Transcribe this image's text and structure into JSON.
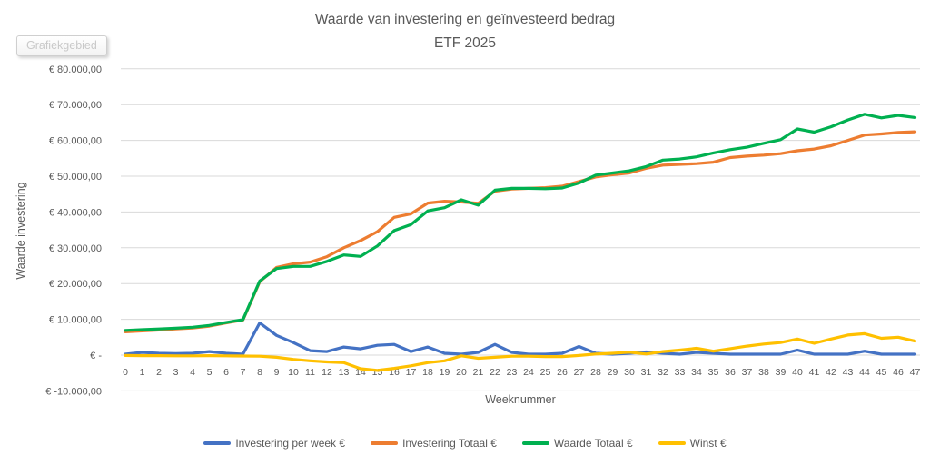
{
  "window": {
    "tooltip_label": "Grafiekgebied"
  },
  "title": {
    "line1": "Waarde van investering en geïnvesteerd bedrag",
    "line2": "ETF 2025"
  },
  "axes": {
    "y_title": "Waarde investering",
    "x_title": "Weeknummer"
  },
  "colors": {
    "grid": "#d9d9d9",
    "text": "#595959",
    "series_blue": "#4472C4",
    "series_orange": "#ED7D31",
    "series_green": "#00B050",
    "series_yellow": "#FFC000"
  },
  "chart_data": {
    "type": "line",
    "title": "Waarde van investering en geïnvesteerd bedrag ETF 2025",
    "xlabel": "Weeknummer",
    "ylabel": "Waarde investering",
    "ylim": [
      -10000,
      80000
    ],
    "grid": true,
    "legend_position": "bottom",
    "x": [
      0,
      1,
      2,
      3,
      4,
      5,
      6,
      7,
      8,
      9,
      10,
      11,
      12,
      13,
      14,
      15,
      16,
      17,
      18,
      19,
      20,
      21,
      22,
      23,
      24,
      25,
      26,
      27,
      28,
      29,
      30,
      31,
      32,
      33,
      34,
      35,
      36,
      37,
      38,
      39,
      40,
      41,
      42,
      43,
      44,
      45,
      46,
      47
    ],
    "y_ticks": [
      {
        "label": "€ 80.000,00",
        "value": 80000
      },
      {
        "label": "€ 70.000,00",
        "value": 70000
      },
      {
        "label": "€ 60.000,00",
        "value": 60000
      },
      {
        "label": "€ 50.000,00",
        "value": 50000
      },
      {
        "label": "€ 40.000,00",
        "value": 40000
      },
      {
        "label": "€ 30.000,00",
        "value": 30000
      },
      {
        "label": "€ 20.000,00",
        "value": 20000
      },
      {
        "label": "€ 10.000,00",
        "value": 10000
      },
      {
        "label": "€ -",
        "value": 0
      },
      {
        "label": "€ -10.000,00",
        "value": -10000
      }
    ],
    "series": [
      {
        "name": "Investering per week €",
        "color": "#4472C4",
        "values": [
          250,
          750,
          500,
          400,
          500,
          1000,
          500,
          250,
          9000,
          5500,
          3500,
          1250,
          1000,
          2250,
          1750,
          2750,
          3000,
          1000,
          2250,
          500,
          250,
          750,
          3000,
          750,
          250,
          250,
          500,
          2400,
          500,
          250,
          500,
          900,
          500,
          250,
          750,
          500,
          250,
          250,
          250,
          250,
          1400,
          250,
          250,
          250,
          1100,
          250,
          250,
          250
        ]
      },
      {
        "name": "Investering Totaal €",
        "color": "#ED7D31",
        "values": [
          6500,
          6750,
          7000,
          7300,
          7600,
          8100,
          9000,
          9800,
          20500,
          24500,
          25500,
          26000,
          27500,
          30000,
          32000,
          34500,
          38500,
          39500,
          42500,
          43000,
          42800,
          42400,
          45800,
          46400,
          46600,
          46800,
          47200,
          48500,
          49800,
          50400,
          50900,
          52200,
          53100,
          53300,
          53500,
          53900,
          55200,
          55600,
          55900,
          56300,
          57100,
          57600,
          58500,
          60000,
          61500,
          61800,
          62200,
          62400
        ]
      },
      {
        "name": "Waarde Totaal €",
        "color": "#00B050",
        "values": [
          6900,
          7100,
          7300,
          7500,
          7800,
          8300,
          9100,
          9900,
          20700,
          24200,
          24800,
          24800,
          26200,
          28000,
          27600,
          30500,
          34800,
          36500,
          40300,
          41200,
          43400,
          41900,
          46100,
          46600,
          46600,
          46500,
          46700,
          48100,
          50300,
          50900,
          51500,
          52700,
          54500,
          54800,
          55400,
          56500,
          57400,
          58100,
          59200,
          60200,
          63200,
          62300,
          63800,
          65700,
          67300,
          66300,
          67000,
          66400
        ]
      },
      {
        "name": "Winst €",
        "color": "#FFC000",
        "values": [
          -100,
          -150,
          -150,
          -200,
          -200,
          -150,
          -200,
          -250,
          -300,
          -600,
          -1200,
          -1600,
          -1900,
          -2100,
          -3800,
          -4300,
          -3700,
          -3000,
          -2100,
          -1600,
          -200,
          -900,
          -600,
          -300,
          -300,
          -400,
          -400,
          -100,
          300,
          500,
          800,
          300,
          1000,
          1400,
          1900,
          1100,
          1800,
          2500,
          3100,
          3500,
          4500,
          3300,
          4500,
          5600,
          6000,
          4700,
          5000,
          3900
        ]
      }
    ]
  }
}
